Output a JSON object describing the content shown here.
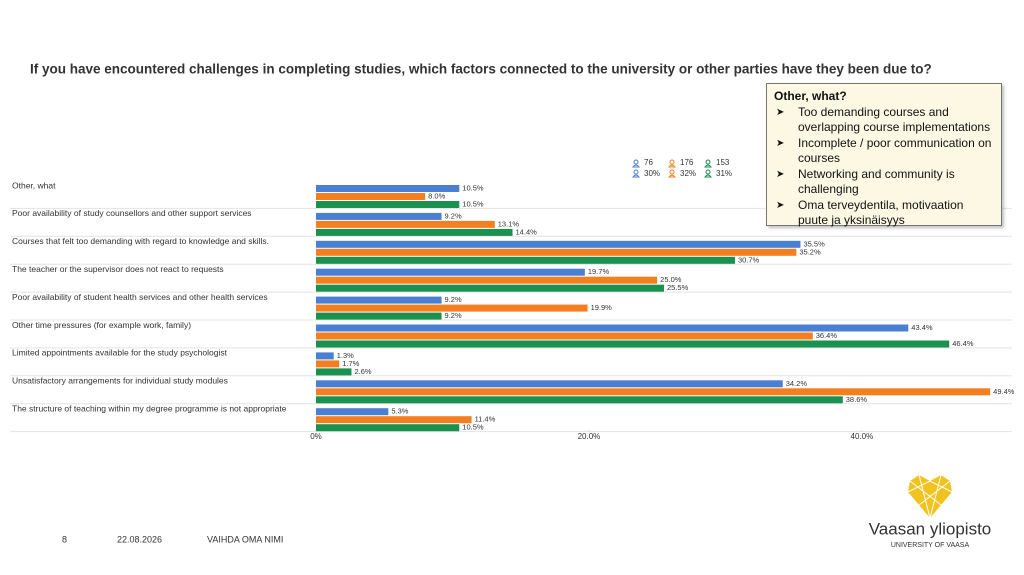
{
  "chart_data": {
    "type": "hbar",
    "title": "If you have encountered challenges in completing studies, which factors connected to the university or other parties have they been due to?",
    "categories": [
      "Other, what",
      "Poor availability of study counsellors and other support services",
      "Courses that felt too demanding with regard to knowledge and skills.",
      "The teacher or the supervisor does not react to requests",
      "Poor availability of student health services and other health services",
      "Other time pressures (for example work, family)",
      "Limited appointments available for the study psychologist",
      "Unsatisfactory arrangements for individual study modules",
      "The structure of teaching within my degree programme is not appropriate"
    ],
    "series": [
      {
        "n": "76",
        "share": "30%",
        "color": "#4a7fd1",
        "values": [
          10.5,
          9.2,
          35.5,
          19.7,
          9.2,
          43.4,
          1.3,
          34.2,
          5.3
        ],
        "value_labels": [
          "10.5%",
          "9.2%",
          "35.5%",
          "19.7%",
          "9.2%",
          "43.4%",
          "1.3%",
          "34.2%",
          "5.3%"
        ]
      },
      {
        "n": "176",
        "share": "32%",
        "color": "#f47f20",
        "values": [
          8.0,
          13.1,
          35.2,
          25.0,
          19.9,
          36.4,
          1.7,
          49.4,
          11.4
        ],
        "value_labels": [
          "8.0%",
          "13.1%",
          "35.2%",
          "25.0%",
          "19.9%",
          "36.4%",
          "1.7%",
          "49.4%",
          "11.4%"
        ]
      },
      {
        "n": "153",
        "share": "31%",
        "color": "#1a9150",
        "values": [
          10.5,
          14.4,
          30.7,
          25.5,
          9.2,
          46.4,
          2.6,
          38.6,
          10.5
        ],
        "value_labels": [
          "10.5%",
          "14.4%",
          "30.7%",
          "25.5%",
          "9.2%",
          "46.4%",
          "2.6%",
          "38.6%",
          "10.5%"
        ]
      }
    ],
    "xlim": [
      0,
      51
    ],
    "xticks": [
      {
        "value": 0,
        "label": "0%"
      },
      {
        "value": 20,
        "label": "20.0%"
      },
      {
        "value": 40,
        "label": "40.0%"
      }
    ]
  },
  "callout": {
    "title": "Other, what?",
    "items": [
      "Too demanding courses and overlapping course implementations",
      "Incomplete / poor communication on courses",
      "Networking and community is challenging",
      "Oma terveydentila, motivaation puute ja yksinäisyys"
    ]
  },
  "footer": {
    "page": "8",
    "date": "22.08.2026",
    "author": "VAIHDA OMA NIMI"
  },
  "logo": {
    "name": "Vaasan yliopisto",
    "subtitle": "UNIVERSITY OF VAASA"
  }
}
